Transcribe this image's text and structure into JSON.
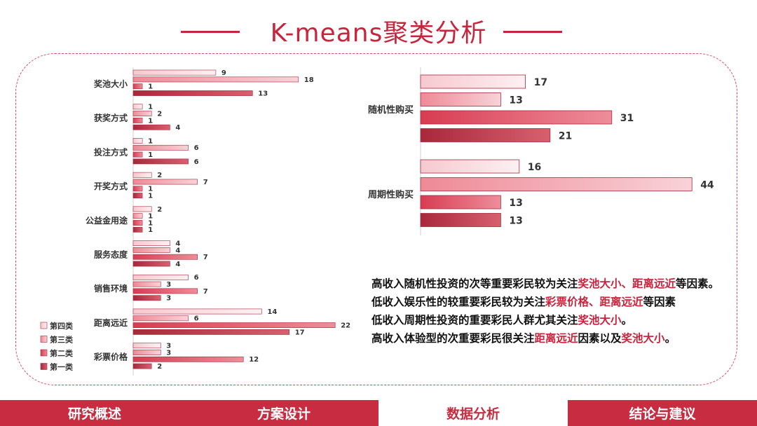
{
  "title": "K-means聚类分析",
  "colors": {
    "accent": "#c8243c",
    "c4": "#f6c9cf",
    "c3": "#ee8a96",
    "c2": "#d83c52",
    "c1": "#a8283b"
  },
  "chart_data": [
    {
      "type": "bar",
      "orientation": "horizontal",
      "categories": [
        "奖池大小",
        "获奖方式",
        "投注方式",
        "开奖方式",
        "公益金用途",
        "服务态度",
        "销售环境",
        "距离远近",
        "彩票价格"
      ],
      "series": [
        {
          "name": "第四类",
          "values": [
            9,
            1,
            1,
            2,
            2,
            4,
            6,
            14,
            3
          ]
        },
        {
          "name": "第三类",
          "values": [
            18,
            2,
            6,
            7,
            1,
            4,
            3,
            6,
            3
          ]
        },
        {
          "name": "第二类",
          "values": [
            1,
            1,
            1,
            1,
            1,
            7,
            7,
            22,
            12
          ]
        },
        {
          "name": "第一类",
          "values": [
            13,
            4,
            6,
            1,
            1,
            4,
            3,
            17,
            2
          ]
        }
      ],
      "legend": [
        "第四类",
        "第三类",
        "第二类",
        "第一类"
      ],
      "legend_position": "bottom-left",
      "xlim": [
        0,
        23
      ]
    },
    {
      "type": "bar",
      "orientation": "horizontal",
      "categories": [
        "随机性购买",
        "周期性购买"
      ],
      "series": [
        {
          "name": "第四类",
          "values": [
            17,
            16
          ]
        },
        {
          "name": "第三类",
          "values": [
            13,
            44
          ]
        },
        {
          "name": "第二类",
          "values": [
            31,
            13
          ]
        },
        {
          "name": "第一类",
          "values": [
            21,
            13
          ]
        }
      ],
      "xlim": [
        0,
        45
      ]
    }
  ],
  "summary": [
    [
      {
        "t": "高收入随机性投资的次等重要彩民较为关注"
      },
      {
        "t": "奖池大小、距离远近",
        "hl": true
      },
      {
        "t": "等因素。"
      }
    ],
    [
      {
        "t": "低收入娱乐性的较重要彩民较为关注"
      },
      {
        "t": "彩票价格、距离远近",
        "hl": true
      },
      {
        "t": "等因素"
      }
    ],
    [
      {
        "t": "低收入周期性投资的重要彩民人群尤其关注"
      },
      {
        "t": "奖池大小",
        "hl": true
      },
      {
        "t": "。"
      }
    ],
    [
      {
        "t": "高收入体验型的次重要彩民很关注"
      },
      {
        "t": "距离远近",
        "hl": true
      },
      {
        "t": "因素以及"
      },
      {
        "t": "奖池大小",
        "hl": true
      },
      {
        "t": "。"
      }
    ]
  ],
  "nav": [
    "研究概述",
    "方案设计",
    "数据分析",
    "结论与建议"
  ],
  "nav_active": 2
}
